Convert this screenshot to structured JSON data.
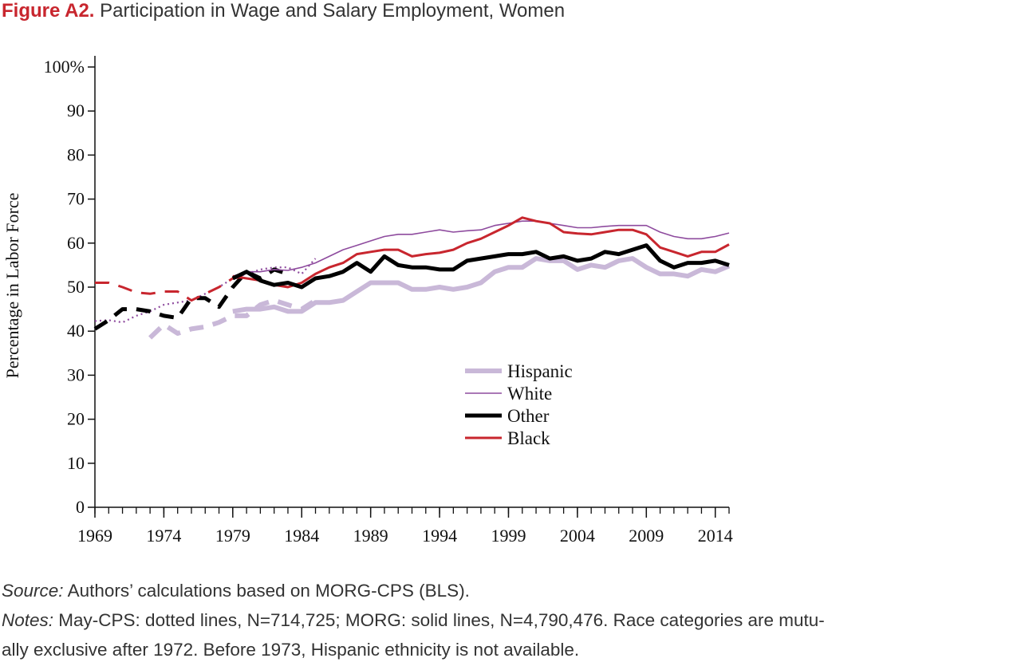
{
  "figure": {
    "label": "Figure A2.",
    "title": "Participation in Wage and Salary Employment, Women"
  },
  "footer": {
    "source_label": "Source:",
    "source_text": "Authors’ calculations based on MORG-CPS (BLS).",
    "notes_label": "Notes:",
    "notes_text": "May-CPS: dotted lines, N=714,725; MORG: solid lines, N=4,790,476. Race categories are mutu-",
    "notes_text_2": "ally exclusive after 1972. Before 1973, Hispanic ethnicity is not available."
  },
  "chart_data": {
    "type": "line",
    "ylabel": "Percentage in Labor Force",
    "xlabel": "",
    "xlim": [
      1969,
      2015
    ],
    "ylim": [
      0,
      100
    ],
    "x_ticks": [
      1969,
      1974,
      1979,
      1984,
      1989,
      1994,
      1999,
      2004,
      2009,
      2014
    ],
    "x_tick_labels": [
      "1969",
      "1974",
      "1979",
      "1984",
      "1989",
      "1994",
      "1999",
      "2004",
      "2009",
      "2014"
    ],
    "y_ticks": [
      0,
      10,
      20,
      30,
      40,
      50,
      60,
      70,
      80,
      90,
      100
    ],
    "y_tick_labels": [
      "0",
      "10",
      "20",
      "30",
      "40",
      "50",
      "60",
      "70",
      "80",
      "90",
      "100%"
    ],
    "legend_position": "center-right",
    "colors": {
      "Hispanic": "#c9b8d8",
      "White": "#8e4b9e",
      "Other": "#000000",
      "Black": "#c8262e"
    },
    "legend": [
      {
        "name": "Hispanic",
        "color": "#c9b8d8",
        "width": 6
      },
      {
        "name": "White",
        "color": "#8e4b9e",
        "width": 1.6
      },
      {
        "name": "Other",
        "color": "#000000",
        "width": 5
      },
      {
        "name": "Black",
        "color": "#c8262e",
        "width": 3
      }
    ],
    "series": [
      {
        "name": "White",
        "style": "dotted",
        "x": [
          1969,
          1970,
          1971,
          1972,
          1973,
          1974,
          1975,
          1976,
          1977,
          1978,
          1979,
          1980,
          1981,
          1982,
          1983,
          1984,
          1985
        ],
        "y": [
          42.3,
          42.5,
          42.0,
          43.5,
          44.5,
          46.0,
          46.5,
          47.0,
          48.5,
          50.0,
          52.0,
          53.0,
          54.0,
          54.5,
          54.5,
          53.0,
          56.5
        ]
      },
      {
        "name": "Hispanic",
        "style": "dashed",
        "x": [
          1973,
          1974,
          1975,
          1976,
          1977,
          1978,
          1979,
          1980,
          1981,
          1982,
          1983,
          1984,
          1985
        ],
        "y": [
          38.5,
          41.5,
          39.5,
          40.5,
          41.0,
          42.0,
          43.5,
          43.5,
          46.0,
          47.0,
          46.0,
          45.0,
          47.0
        ]
      },
      {
        "name": "Other",
        "style": "dashed",
        "x": [
          1969,
          1970,
          1971,
          1972,
          1973,
          1974,
          1975,
          1976,
          1977,
          1978,
          1979,
          1980,
          1981,
          1982,
          1983
        ],
        "y": [
          40.5,
          42.5,
          45.0,
          45.0,
          44.5,
          43.5,
          43.0,
          47.5,
          47.5,
          45.5,
          50.0,
          53.5,
          52.0,
          54.0,
          53.0
        ]
      },
      {
        "name": "Black",
        "style": "dashed",
        "x": [
          1969,
          1970,
          1971,
          1972,
          1973,
          1974,
          1975,
          1976,
          1977,
          1978,
          1979,
          1980
        ],
        "y": [
          51.0,
          51.0,
          50.0,
          48.8,
          48.5,
          49.0,
          49.0,
          47.0,
          48.5,
          50.0,
          52.0,
          52.5
        ]
      },
      {
        "name": "White",
        "style": "solid",
        "x": [
          1979,
          1980,
          1981,
          1982,
          1983,
          1984,
          1985,
          1986,
          1987,
          1988,
          1989,
          1990,
          1991,
          1992,
          1993,
          1994,
          1995,
          1996,
          1997,
          1998,
          1999,
          2000,
          2001,
          2002,
          2003,
          2004,
          2005,
          2006,
          2007,
          2008,
          2009,
          2010,
          2011,
          2012,
          2013,
          2014,
          2015
        ],
        "y": [
          52.5,
          53.5,
          53.5,
          54.0,
          53.8,
          54.5,
          55.5,
          57.0,
          58.5,
          59.5,
          60.5,
          61.5,
          62.0,
          62.0,
          62.5,
          63.0,
          62.5,
          62.8,
          63.0,
          64.0,
          64.5,
          65.0,
          65.0,
          64.5,
          64.0,
          63.5,
          63.5,
          63.8,
          64.0,
          64.0,
          64.0,
          62.5,
          61.5,
          61.0,
          61.0,
          61.5,
          62.3
        ]
      },
      {
        "name": "Black",
        "style": "solid",
        "x": [
          1979,
          1980,
          1981,
          1982,
          1983,
          1984,
          1985,
          1986,
          1987,
          1988,
          1989,
          1990,
          1991,
          1992,
          1993,
          1994,
          1995,
          1996,
          1997,
          1998,
          1999,
          2000,
          2001,
          2002,
          2003,
          2004,
          2005,
          2006,
          2007,
          2008,
          2009,
          2010,
          2011,
          2012,
          2013,
          2014,
          2015
        ],
        "y": [
          52.5,
          52.0,
          51.5,
          50.5,
          50.0,
          51.0,
          53.0,
          54.5,
          55.5,
          57.5,
          58.0,
          58.5,
          58.5,
          57.0,
          57.5,
          57.8,
          58.5,
          60.0,
          61.0,
          62.5,
          64.0,
          65.8,
          65.0,
          64.5,
          62.5,
          62.2,
          62.0,
          62.5,
          63.0,
          63.0,
          62.0,
          59.0,
          58.0,
          57.0,
          58.0,
          58.0,
          59.7
        ]
      },
      {
        "name": "Hispanic",
        "style": "solid",
        "x": [
          1979,
          1980,
          1981,
          1982,
          1983,
          1984,
          1985,
          1986,
          1987,
          1988,
          1989,
          1990,
          1991,
          1992,
          1993,
          1994,
          1995,
          1996,
          1997,
          1998,
          1999,
          2000,
          2001,
          2002,
          2003,
          2004,
          2005,
          2006,
          2007,
          2008,
          2009,
          2010,
          2011,
          2012,
          2013,
          2014,
          2015
        ],
        "y": [
          44.5,
          45.0,
          45.0,
          45.5,
          44.5,
          44.5,
          46.5,
          46.5,
          47.0,
          49.0,
          51.0,
          51.0,
          51.0,
          49.5,
          49.5,
          50.0,
          49.5,
          50.0,
          51.0,
          53.5,
          54.5,
          54.5,
          56.5,
          56.0,
          56.0,
          54.0,
          55.0,
          54.5,
          56.0,
          56.5,
          54.5,
          53.0,
          53.0,
          52.5,
          54.0,
          53.5,
          54.8
        ]
      },
      {
        "name": "Other",
        "style": "solid",
        "x": [
          1979,
          1980,
          1981,
          1982,
          1983,
          1984,
          1985,
          1986,
          1987,
          1988,
          1989,
          1990,
          1991,
          1992,
          1993,
          1994,
          1995,
          1996,
          1997,
          1998,
          1999,
          2000,
          2001,
          2002,
          2003,
          2004,
          2005,
          2006,
          2007,
          2008,
          2009,
          2010,
          2011,
          2012,
          2013,
          2014,
          2015
        ],
        "y": [
          52.0,
          53.5,
          51.5,
          50.5,
          51.0,
          50.0,
          52.0,
          52.5,
          53.5,
          55.5,
          53.5,
          57.0,
          55.0,
          54.5,
          54.5,
          54.0,
          54.0,
          56.0,
          56.5,
          57.0,
          57.5,
          57.5,
          58.0,
          56.5,
          57.0,
          56.0,
          56.5,
          58.0,
          57.5,
          58.5,
          59.5,
          56.0,
          54.5,
          55.5,
          55.5,
          56.0,
          55.0
        ]
      }
    ]
  }
}
